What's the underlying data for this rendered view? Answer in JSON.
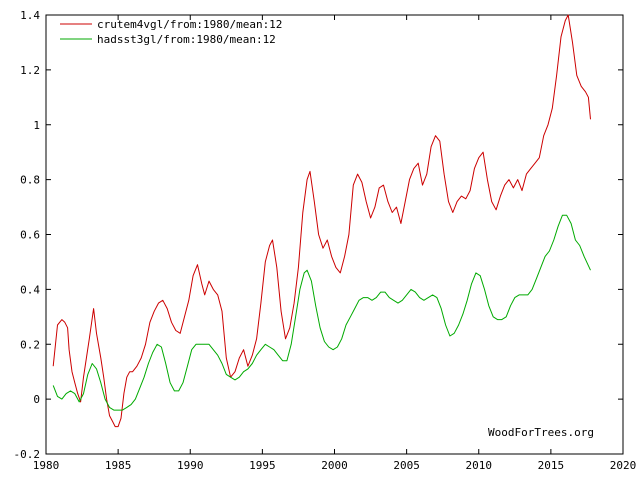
{
  "chart_data": {
    "type": "line",
    "title": "",
    "xlabel": "",
    "ylabel": "",
    "xlim": [
      1980,
      2020
    ],
    "ylim": [
      -0.2,
      1.4
    ],
    "x_ticks": [
      1980,
      1985,
      1990,
      1995,
      2000,
      2005,
      2010,
      2015,
      2020
    ],
    "x_tick_labels": [
      "1980",
      "1985",
      "1990",
      "1995",
      "2000",
      "2005",
      "2010",
      "2015",
      "2020"
    ],
    "y_ticks": [
      -0.2,
      0,
      0.2,
      0.4,
      0.6,
      0.8,
      1,
      1.2,
      1.4
    ],
    "y_tick_labels": [
      "-0.2",
      "0",
      "0.2",
      "0.4",
      "0.6",
      "0.8",
      "1",
      "1.2",
      "1.4"
    ],
    "grid": false,
    "legend_position": "top-left",
    "watermark": "WoodForTrees.org",
    "series": [
      {
        "name": "crutem4vgl/from:1980/mean:12",
        "color": "#cc0000",
        "points": [
          [
            1980.5,
            0.12
          ],
          [
            1980.8,
            0.27
          ],
          [
            1981.1,
            0.29
          ],
          [
            1981.3,
            0.28
          ],
          [
            1981.5,
            0.26
          ],
          [
            1981.6,
            0.18
          ],
          [
            1981.8,
            0.1
          ],
          [
            1982.0,
            0.06
          ],
          [
            1982.2,
            0.02
          ],
          [
            1982.4,
            -0.01
          ],
          [
            1982.6,
            0.08
          ],
          [
            1982.8,
            0.15
          ],
          [
            1983.0,
            0.22
          ],
          [
            1983.3,
            0.33
          ],
          [
            1983.5,
            0.24
          ],
          [
            1983.8,
            0.15
          ],
          [
            1984.0,
            0.08
          ],
          [
            1984.2,
            0.0
          ],
          [
            1984.4,
            -0.06
          ],
          [
            1984.6,
            -0.08
          ],
          [
            1984.8,
            -0.1
          ],
          [
            1985.0,
            -0.1
          ],
          [
            1985.2,
            -0.07
          ],
          [
            1985.4,
            0.02
          ],
          [
            1985.6,
            0.08
          ],
          [
            1985.8,
            0.1
          ],
          [
            1986.0,
            0.1
          ],
          [
            1986.3,
            0.12
          ],
          [
            1986.6,
            0.15
          ],
          [
            1986.9,
            0.2
          ],
          [
            1987.2,
            0.28
          ],
          [
            1987.5,
            0.32
          ],
          [
            1987.8,
            0.35
          ],
          [
            1988.1,
            0.36
          ],
          [
            1988.4,
            0.33
          ],
          [
            1988.7,
            0.28
          ],
          [
            1989.0,
            0.25
          ],
          [
            1989.3,
            0.24
          ],
          [
            1989.6,
            0.3
          ],
          [
            1989.9,
            0.36
          ],
          [
            1990.2,
            0.45
          ],
          [
            1990.5,
            0.49
          ],
          [
            1990.8,
            0.42
          ],
          [
            1991.0,
            0.38
          ],
          [
            1991.3,
            0.43
          ],
          [
            1991.6,
            0.4
          ],
          [
            1991.9,
            0.38
          ],
          [
            1992.2,
            0.32
          ],
          [
            1992.5,
            0.15
          ],
          [
            1992.8,
            0.08
          ],
          [
            1993.1,
            0.1
          ],
          [
            1993.4,
            0.15
          ],
          [
            1993.7,
            0.18
          ],
          [
            1994.0,
            0.12
          ],
          [
            1994.3,
            0.16
          ],
          [
            1994.6,
            0.22
          ],
          [
            1994.9,
            0.35
          ],
          [
            1995.2,
            0.5
          ],
          [
            1995.5,
            0.56
          ],
          [
            1995.7,
            0.58
          ],
          [
            1996.0,
            0.48
          ],
          [
            1996.3,
            0.32
          ],
          [
            1996.6,
            0.22
          ],
          [
            1996.9,
            0.26
          ],
          [
            1997.2,
            0.35
          ],
          [
            1997.5,
            0.48
          ],
          [
            1997.8,
            0.68
          ],
          [
            1998.1,
            0.8
          ],
          [
            1998.3,
            0.83
          ],
          [
            1998.6,
            0.72
          ],
          [
            1998.9,
            0.6
          ],
          [
            1999.2,
            0.55
          ],
          [
            1999.5,
            0.58
          ],
          [
            1999.8,
            0.52
          ],
          [
            2000.1,
            0.48
          ],
          [
            2000.4,
            0.46
          ],
          [
            2000.7,
            0.52
          ],
          [
            2001.0,
            0.6
          ],
          [
            2001.3,
            0.78
          ],
          [
            2001.6,
            0.82
          ],
          [
            2001.9,
            0.79
          ],
          [
            2002.2,
            0.72
          ],
          [
            2002.5,
            0.66
          ],
          [
            2002.8,
            0.7
          ],
          [
            2003.1,
            0.77
          ],
          [
            2003.4,
            0.78
          ],
          [
            2003.7,
            0.72
          ],
          [
            2004.0,
            0.68
          ],
          [
            2004.3,
            0.7
          ],
          [
            2004.6,
            0.64
          ],
          [
            2004.9,
            0.72
          ],
          [
            2005.2,
            0.8
          ],
          [
            2005.5,
            0.84
          ],
          [
            2005.8,
            0.86
          ],
          [
            2006.1,
            0.78
          ],
          [
            2006.4,
            0.82
          ],
          [
            2006.7,
            0.92
          ],
          [
            2007.0,
            0.96
          ],
          [
            2007.3,
            0.94
          ],
          [
            2007.6,
            0.82
          ],
          [
            2007.9,
            0.72
          ],
          [
            2008.2,
            0.68
          ],
          [
            2008.5,
            0.72
          ],
          [
            2008.8,
            0.74
          ],
          [
            2009.1,
            0.73
          ],
          [
            2009.4,
            0.76
          ],
          [
            2009.7,
            0.84
          ],
          [
            2010.0,
            0.88
          ],
          [
            2010.3,
            0.9
          ],
          [
            2010.6,
            0.8
          ],
          [
            2010.9,
            0.72
          ],
          [
            2011.2,
            0.69
          ],
          [
            2011.5,
            0.74
          ],
          [
            2011.8,
            0.78
          ],
          [
            2012.1,
            0.8
          ],
          [
            2012.4,
            0.77
          ],
          [
            2012.7,
            0.8
          ],
          [
            2013.0,
            0.76
          ],
          [
            2013.3,
            0.82
          ],
          [
            2013.6,
            0.84
          ],
          [
            2013.9,
            0.86
          ],
          [
            2014.2,
            0.88
          ],
          [
            2014.5,
            0.96
          ],
          [
            2014.8,
            1.0
          ],
          [
            2015.1,
            1.06
          ],
          [
            2015.4,
            1.18
          ],
          [
            2015.7,
            1.32
          ],
          [
            2016.0,
            1.38
          ],
          [
            2016.2,
            1.4
          ],
          [
            2016.5,
            1.3
          ],
          [
            2016.8,
            1.18
          ],
          [
            2017.1,
            1.14
          ],
          [
            2017.4,
            1.12
          ],
          [
            2017.6,
            1.1
          ],
          [
            2017.75,
            1.02
          ]
        ]
      },
      {
        "name": "hadsst3gl/from:1980/mean:12",
        "color": "#00aa00",
        "points": [
          [
            1980.5,
            0.05
          ],
          [
            1980.8,
            0.01
          ],
          [
            1981.1,
            0.0
          ],
          [
            1981.4,
            0.02
          ],
          [
            1981.7,
            0.03
          ],
          [
            1982.0,
            0.02
          ],
          [
            1982.3,
            -0.01
          ],
          [
            1982.6,
            0.02
          ],
          [
            1982.9,
            0.09
          ],
          [
            1983.2,
            0.13
          ],
          [
            1983.5,
            0.11
          ],
          [
            1983.8,
            0.06
          ],
          [
            1984.1,
            0.0
          ],
          [
            1984.4,
            -0.03
          ],
          [
            1984.7,
            -0.04
          ],
          [
            1985.0,
            -0.04
          ],
          [
            1985.3,
            -0.04
          ],
          [
            1985.6,
            -0.03
          ],
          [
            1985.9,
            -0.02
          ],
          [
            1986.2,
            0.0
          ],
          [
            1986.5,
            0.04
          ],
          [
            1986.8,
            0.08
          ],
          [
            1987.1,
            0.13
          ],
          [
            1987.4,
            0.17
          ],
          [
            1987.7,
            0.2
          ],
          [
            1988.0,
            0.19
          ],
          [
            1988.3,
            0.13
          ],
          [
            1988.6,
            0.06
          ],
          [
            1988.9,
            0.03
          ],
          [
            1989.2,
            0.03
          ],
          [
            1989.5,
            0.06
          ],
          [
            1989.8,
            0.12
          ],
          [
            1990.1,
            0.18
          ],
          [
            1990.4,
            0.2
          ],
          [
            1990.7,
            0.2
          ],
          [
            1991.0,
            0.2
          ],
          [
            1991.3,
            0.2
          ],
          [
            1991.6,
            0.18
          ],
          [
            1991.9,
            0.16
          ],
          [
            1992.2,
            0.13
          ],
          [
            1992.5,
            0.09
          ],
          [
            1992.8,
            0.08
          ],
          [
            1993.1,
            0.07
          ],
          [
            1993.4,
            0.08
          ],
          [
            1993.7,
            0.1
          ],
          [
            1994.0,
            0.11
          ],
          [
            1994.3,
            0.13
          ],
          [
            1994.6,
            0.16
          ],
          [
            1994.9,
            0.18
          ],
          [
            1995.2,
            0.2
          ],
          [
            1995.5,
            0.19
          ],
          [
            1995.8,
            0.18
          ],
          [
            1996.1,
            0.16
          ],
          [
            1996.4,
            0.14
          ],
          [
            1996.7,
            0.14
          ],
          [
            1997.0,
            0.2
          ],
          [
            1997.3,
            0.3
          ],
          [
            1997.6,
            0.4
          ],
          [
            1997.9,
            0.46
          ],
          [
            1998.1,
            0.47
          ],
          [
            1998.4,
            0.43
          ],
          [
            1998.7,
            0.34
          ],
          [
            1999.0,
            0.26
          ],
          [
            1999.3,
            0.21
          ],
          [
            1999.6,
            0.19
          ],
          [
            1999.9,
            0.18
          ],
          [
            2000.2,
            0.19
          ],
          [
            2000.5,
            0.22
          ],
          [
            2000.8,
            0.27
          ],
          [
            2001.1,
            0.3
          ],
          [
            2001.4,
            0.33
          ],
          [
            2001.7,
            0.36
          ],
          [
            2002.0,
            0.37
          ],
          [
            2002.3,
            0.37
          ],
          [
            2002.6,
            0.36
          ],
          [
            2002.9,
            0.37
          ],
          [
            2003.2,
            0.39
          ],
          [
            2003.5,
            0.39
          ],
          [
            2003.8,
            0.37
          ],
          [
            2004.1,
            0.36
          ],
          [
            2004.4,
            0.35
          ],
          [
            2004.7,
            0.36
          ],
          [
            2005.0,
            0.38
          ],
          [
            2005.3,
            0.4
          ],
          [
            2005.6,
            0.39
          ],
          [
            2005.9,
            0.37
          ],
          [
            2006.2,
            0.36
          ],
          [
            2006.5,
            0.37
          ],
          [
            2006.8,
            0.38
          ],
          [
            2007.1,
            0.37
          ],
          [
            2007.4,
            0.33
          ],
          [
            2007.7,
            0.27
          ],
          [
            2008.0,
            0.23
          ],
          [
            2008.3,
            0.24
          ],
          [
            2008.6,
            0.27
          ],
          [
            2008.9,
            0.31
          ],
          [
            2009.2,
            0.36
          ],
          [
            2009.5,
            0.42
          ],
          [
            2009.8,
            0.46
          ],
          [
            2010.1,
            0.45
          ],
          [
            2010.4,
            0.4
          ],
          [
            2010.7,
            0.34
          ],
          [
            2011.0,
            0.3
          ],
          [
            2011.3,
            0.29
          ],
          [
            2011.6,
            0.29
          ],
          [
            2011.9,
            0.3
          ],
          [
            2012.2,
            0.34
          ],
          [
            2012.5,
            0.37
          ],
          [
            2012.8,
            0.38
          ],
          [
            2013.1,
            0.38
          ],
          [
            2013.4,
            0.38
          ],
          [
            2013.7,
            0.4
          ],
          [
            2014.0,
            0.44
          ],
          [
            2014.3,
            0.48
          ],
          [
            2014.6,
            0.52
          ],
          [
            2014.9,
            0.54
          ],
          [
            2015.2,
            0.58
          ],
          [
            2015.5,
            0.63
          ],
          [
            2015.8,
            0.67
          ],
          [
            2016.1,
            0.67
          ],
          [
            2016.4,
            0.64
          ],
          [
            2016.7,
            0.58
          ],
          [
            2017.0,
            0.56
          ],
          [
            2017.3,
            0.52
          ],
          [
            2017.75,
            0.47
          ]
        ]
      }
    ]
  }
}
